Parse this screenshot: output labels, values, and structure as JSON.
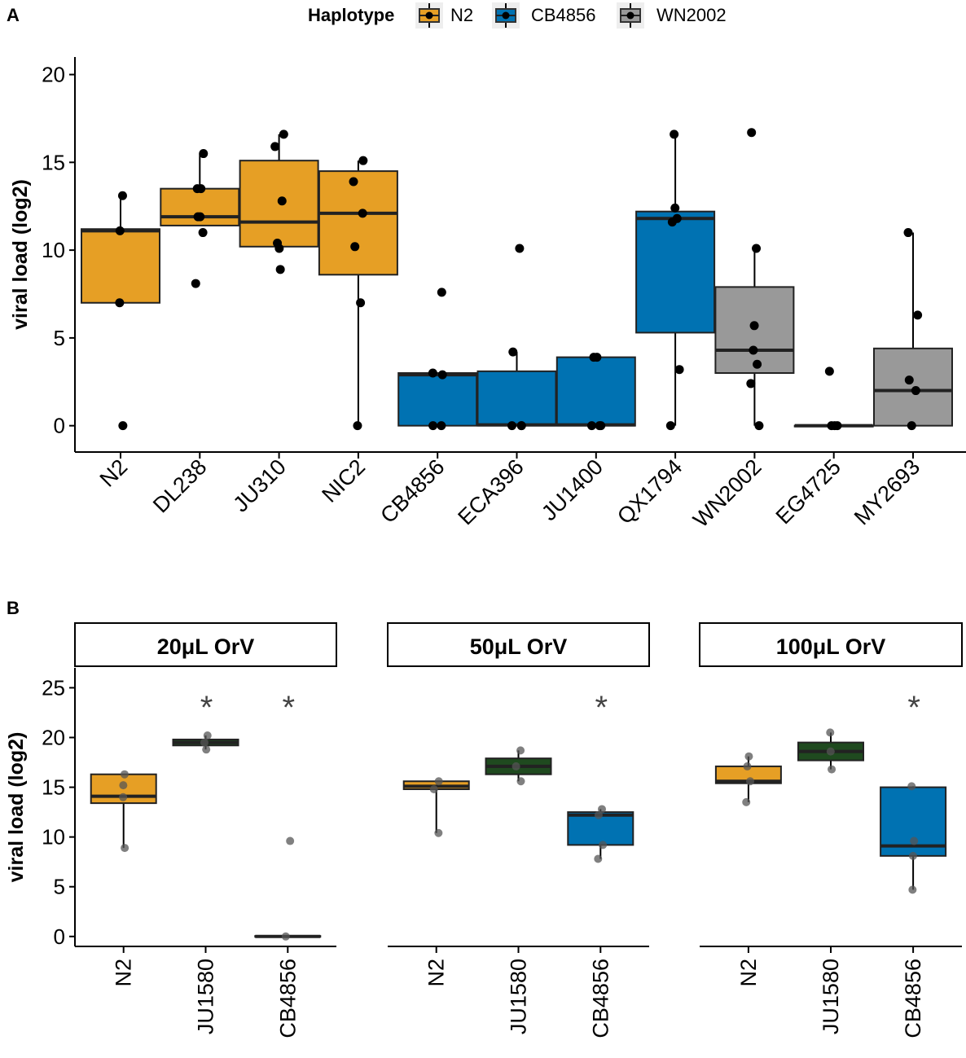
{
  "colors": {
    "N2": "#E69F25",
    "CB4856": "#0072B2",
    "WN2002": "#999999",
    "JU1580": "#1F4A1F",
    "axis": "#000000",
    "point": "#000000"
  },
  "legend": {
    "title": "Haplotype",
    "entries": [
      {
        "label": "N2",
        "color_key": "N2"
      },
      {
        "label": "CB4856",
        "color_key": "CB4856"
      },
      {
        "label": "WN2002",
        "color_key": "WN2002"
      }
    ]
  },
  "chart_data": [
    {
      "type": "box",
      "panel_label": "A",
      "title": "",
      "xlabel": "",
      "ylabel": "viral load (log2)",
      "ylim": [
        -1.5,
        21
      ],
      "yticks": [
        0,
        5,
        10,
        15,
        20
      ],
      "boxes": [
        {
          "category": "N2",
          "group": "N2",
          "min": 7.0,
          "q1": 7.0,
          "median": 11.1,
          "q3": 11.2,
          "max": 13.1,
          "points": [
            13.1,
            11.1,
            7.0,
            0.0
          ]
        },
        {
          "category": "DL238",
          "group": "N2",
          "min": 11.4,
          "q1": 11.4,
          "median": 11.9,
          "q3": 13.5,
          "max": 15.5,
          "points": [
            15.5,
            13.5,
            13.5,
            11.9,
            11.9,
            11.0,
            8.1
          ]
        },
        {
          "category": "JU310",
          "group": "N2",
          "min": 10.2,
          "q1": 10.2,
          "median": 11.6,
          "q3": 15.1,
          "max": 16.6,
          "points": [
            16.6,
            15.9,
            12.8,
            10.4,
            10.1,
            8.9
          ]
        },
        {
          "category": "NIC2",
          "group": "N2",
          "min": 0.0,
          "q1": 8.6,
          "median": 12.1,
          "q3": 14.5,
          "max": 15.1,
          "points": [
            15.1,
            13.9,
            12.1,
            10.2,
            7.0,
            0.0
          ]
        },
        {
          "category": "CB4856",
          "group": "CB4856",
          "min": 0.0,
          "q1": 0.0,
          "median": 2.9,
          "q3": 3.0,
          "max": 3.0,
          "points": [
            7.6,
            3.0,
            2.9,
            0.0,
            0.0
          ]
        },
        {
          "category": "ECA396",
          "group": "CB4856",
          "min": 0.0,
          "q1": 0.0,
          "median": 0.05,
          "q3": 3.1,
          "max": 4.2,
          "points": [
            10.1,
            4.2,
            0.0,
            0.0,
            0.0
          ]
        },
        {
          "category": "JU1400",
          "group": "CB4856",
          "min": 0.0,
          "q1": 0.0,
          "median": 0.05,
          "q3": 3.9,
          "max": 3.9,
          "points": [
            3.9,
            3.9,
            0.0,
            0.0,
            0.0
          ]
        },
        {
          "category": "QX1794",
          "group": "CB4856",
          "min": 0.0,
          "q1": 5.3,
          "median": 11.8,
          "q3": 12.2,
          "max": 16.6,
          "points": [
            16.6,
            12.4,
            11.8,
            11.6,
            3.2,
            0.0
          ]
        },
        {
          "category": "WN2002",
          "group": "WN2002",
          "min": 0.0,
          "q1": 3.0,
          "median": 4.3,
          "q3": 7.9,
          "max": 10.1,
          "points": [
            16.7,
            10.1,
            5.7,
            4.3,
            3.5,
            2.4,
            0.0
          ]
        },
        {
          "category": "EG4725",
          "group": "WN2002",
          "min": 0.0,
          "q1": 0.0,
          "median": 0.0,
          "q3": 0.0,
          "max": 0.0,
          "points": [
            3.1,
            0.0,
            0.0,
            0.0
          ]
        },
        {
          "category": "MY2693",
          "group": "WN2002",
          "min": 0.0,
          "q1": 0.0,
          "median": 2.0,
          "q3": 4.4,
          "max": 11.0,
          "points": [
            11.0,
            6.3,
            2.6,
            2.0,
            0.0
          ]
        }
      ]
    },
    {
      "type": "box",
      "panel_label": "B",
      "title": "",
      "xlabel": "",
      "ylabel": "viral load (log2)",
      "ylim": [
        -1,
        27
      ],
      "yticks": [
        0,
        5,
        10,
        15,
        20,
        25
      ],
      "facets": [
        {
          "title": "20μL OrV",
          "boxes": [
            {
              "category": "N2",
              "group": "N2",
              "min": 8.9,
              "q1": 13.4,
              "median": 14.1,
              "q3": 16.3,
              "max": 16.3,
              "points": [
                16.3,
                15.2,
                14.0,
                8.9
              ],
              "significant": ""
            },
            {
              "category": "JU1580",
              "group": "JU1580",
              "min": 18.8,
              "q1": 19.2,
              "median": 19.5,
              "q3": 19.8,
              "max": 20.2,
              "points": [
                20.2,
                19.5,
                18.8
              ],
              "significant": "*"
            },
            {
              "category": "CB4856",
              "group": "CB4856",
              "min": 0.0,
              "q1": 0.0,
              "median": 0.0,
              "q3": 0.05,
              "max": 0.05,
              "points": [
                9.6,
                0.0
              ],
              "significant": "*"
            }
          ]
        },
        {
          "title": "50μL OrV",
          "boxes": [
            {
              "category": "N2",
              "group": "N2",
              "min": 10.4,
              "q1": 14.8,
              "median": 15.1,
              "q3": 15.6,
              "max": 15.6,
              "points": [
                15.6,
                14.8,
                10.4
              ],
              "significant": ""
            },
            {
              "category": "JU1580",
              "group": "JU1580",
              "min": 15.6,
              "q1": 16.3,
              "median": 17.1,
              "q3": 17.9,
              "max": 18.7,
              "points": [
                18.7,
                17.1,
                15.6
              ],
              "significant": ""
            },
            {
              "category": "CB4856",
              "group": "CB4856",
              "min": 7.8,
              "q1": 9.2,
              "median": 12.2,
              "q3": 12.5,
              "max": 12.8,
              "points": [
                12.8,
                12.2,
                9.2,
                7.8
              ],
              "significant": "*"
            }
          ]
        },
        {
          "title": "100μL OrV",
          "boxes": [
            {
              "category": "N2",
              "group": "N2",
              "min": 13.5,
              "q1": 15.4,
              "median": 15.6,
              "q3": 17.1,
              "max": 18.1,
              "points": [
                18.1,
                17.1,
                15.6,
                13.5
              ],
              "significant": ""
            },
            {
              "category": "JU1580",
              "group": "JU1580",
              "min": 16.8,
              "q1": 17.7,
              "median": 18.6,
              "q3": 19.5,
              "max": 20.5,
              "points": [
                20.5,
                18.6,
                16.8
              ],
              "significant": ""
            },
            {
              "category": "CB4856",
              "group": "CB4856",
              "min": 4.7,
              "q1": 8.1,
              "median": 9.1,
              "q3": 15.0,
              "max": 15.1,
              "points": [
                15.1,
                9.6,
                8.1,
                4.7
              ],
              "significant": "*"
            }
          ]
        }
      ]
    }
  ]
}
